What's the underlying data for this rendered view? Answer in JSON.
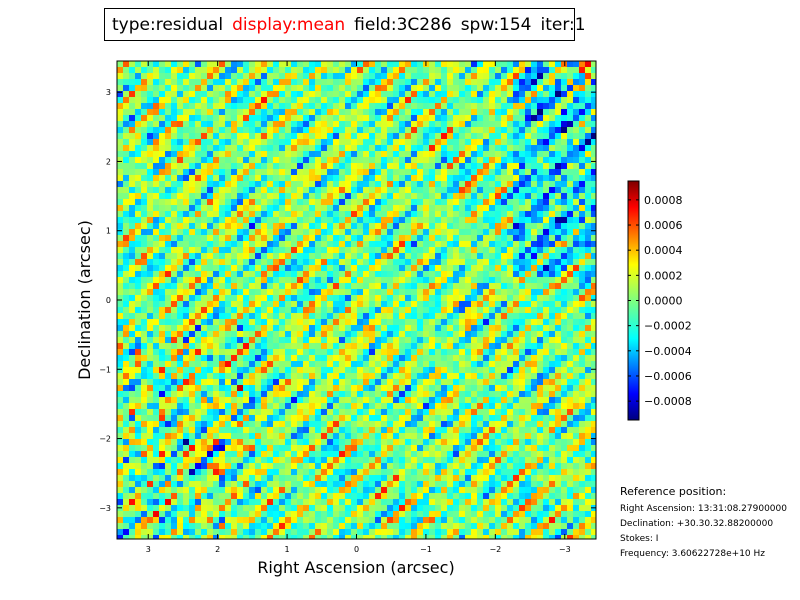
{
  "title_bar": {
    "type": "type:residual",
    "display": "display:mean",
    "field": "field:3C286",
    "spw": "spw:154",
    "iter": "iter:1",
    "highlight_color": "#ff0000"
  },
  "chart_data": {
    "type": "heatmap",
    "colormap": "jet",
    "title": "",
    "xlabel": "Right Ascension (arcsec)",
    "ylabel": "Declination (arcsec)",
    "xlim": [
      3.45,
      -3.45
    ],
    "ylim": [
      -3.45,
      3.45
    ],
    "x_ticks": [
      3,
      2,
      1,
      0,
      -1,
      -2,
      -3
    ],
    "y_ticks": [
      3,
      2,
      1,
      0,
      -1,
      -2,
      -3
    ],
    "x_tick_labels": [
      "3",
      "2",
      "1",
      "0",
      "−1",
      "−2",
      "−3"
    ],
    "y_tick_labels": [
      "3",
      "2",
      "1",
      "0",
      "−1",
      "−2",
      "−3"
    ],
    "colorbar": {
      "vmin": -0.00095,
      "vmax": 0.00095,
      "ticks": [
        0.0008,
        0.0006,
        0.0004,
        0.0002,
        0.0,
        -0.0002,
        -0.0004,
        -0.0006,
        -0.0008
      ],
      "tick_labels": [
        "0.0008",
        "0.0006",
        "0.0004",
        "0.0002",
        "0.0000",
        "−0.0002",
        "−0.0004",
        "−0.0006",
        "−0.0008"
      ]
    },
    "pattern": "diagonal residual stripe noise running from upper-left to lower-right, stronger negative (blue) patches at right edge and lower-left"
  },
  "reference": {
    "title": "Reference position:",
    "ra": "Right Ascension: 13:31:08.27900000",
    "dec": "Declination: +30.30.32.88200000",
    "stokes": "Stokes: I",
    "freq": "Frequency: 3.60622728e+10 Hz"
  }
}
